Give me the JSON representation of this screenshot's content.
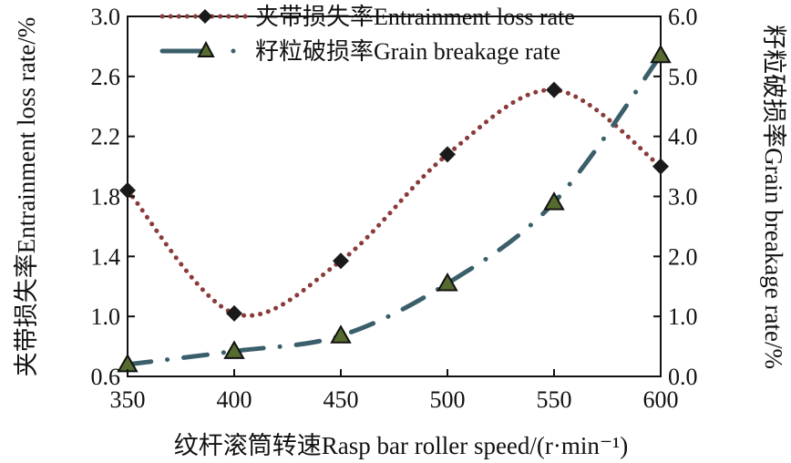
{
  "chart_data": {
    "type": "line",
    "x": [
      350,
      400,
      450,
      500,
      550,
      600
    ],
    "xlim": [
      350,
      600
    ],
    "xticks": [
      "350",
      "400",
      "450",
      "500",
      "550",
      "600"
    ],
    "xlabel": "纹杆滚筒转速Rasp bar roller speed/(r·min⁻¹)",
    "ylabel_left": "夹带损失率Entrainment loss rate/%",
    "ylabel_right": "籽粒破损率Grain breakage rate/%",
    "ylim_left": [
      0.6,
      3.0
    ],
    "ylim_right": [
      0.0,
      6.0
    ],
    "yticks_left": [
      "0.6",
      "1.0",
      "1.4",
      "1.8",
      "2.2",
      "2.6",
      "3.0"
    ],
    "yticks_right": [
      "0.0",
      "1.0",
      "2.0",
      "3.0",
      "4.0",
      "5.0",
      "6.0"
    ],
    "grid": false,
    "legend_position": "top-center",
    "series": [
      {
        "name": "夹带损失率Entrainment loss rate",
        "axis": "left",
        "values": [
          1.84,
          1.02,
          1.37,
          2.08,
          2.51,
          2.0
        ],
        "color": "#8b3a3a",
        "marker": "diamond",
        "marker_color": "#1a1a1a"
      },
      {
        "name": "籽粒破损率Grain breakage rate",
        "axis": "right",
        "values": [
          0.2,
          0.42,
          0.68,
          1.55,
          2.9,
          5.35
        ],
        "color": "#3a5f6b",
        "marker": "triangle",
        "marker_color": "#556b2f"
      }
    ]
  }
}
